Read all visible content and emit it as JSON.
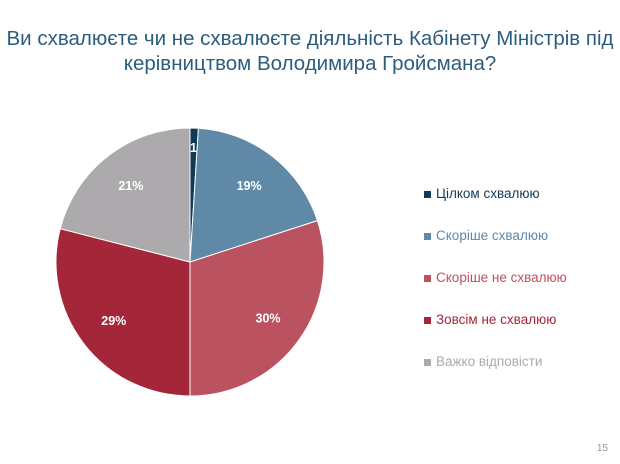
{
  "title_lines": [
    "Ви схвалюєте чи не схвалюєте діяльність Кабінету Міністрів під",
    "керівництвом Володимира Гройсмана?"
  ],
  "page_number": "15",
  "chart_data": {
    "type": "pie",
    "title": "Ви схвалюєте чи не схвалюєте діяльність Кабінету Міністрів під керівництвом Володимира Гройсмана?",
    "categories": [
      "Цілком схвалюю",
      "Скоріше схвалюю",
      "Скоріше не схвалюю",
      "Зовсім не схвалюю",
      "Важко відповісти"
    ],
    "values": [
      1,
      19,
      30,
      29,
      21
    ],
    "labels": [
      "1%",
      "19%",
      "30%",
      "29%",
      "21%"
    ],
    "colors": [
      "#123a57",
      "#5f89a7",
      "#bb525f",
      "#a42739",
      "#adaaad"
    ],
    "label_colors": [
      "#123a57",
      "#5f89a7",
      "#bb525f",
      "#a42739",
      "#adaaad"
    ],
    "start_angle_deg": 0,
    "direction": "clockwise",
    "legend_position": "right"
  }
}
